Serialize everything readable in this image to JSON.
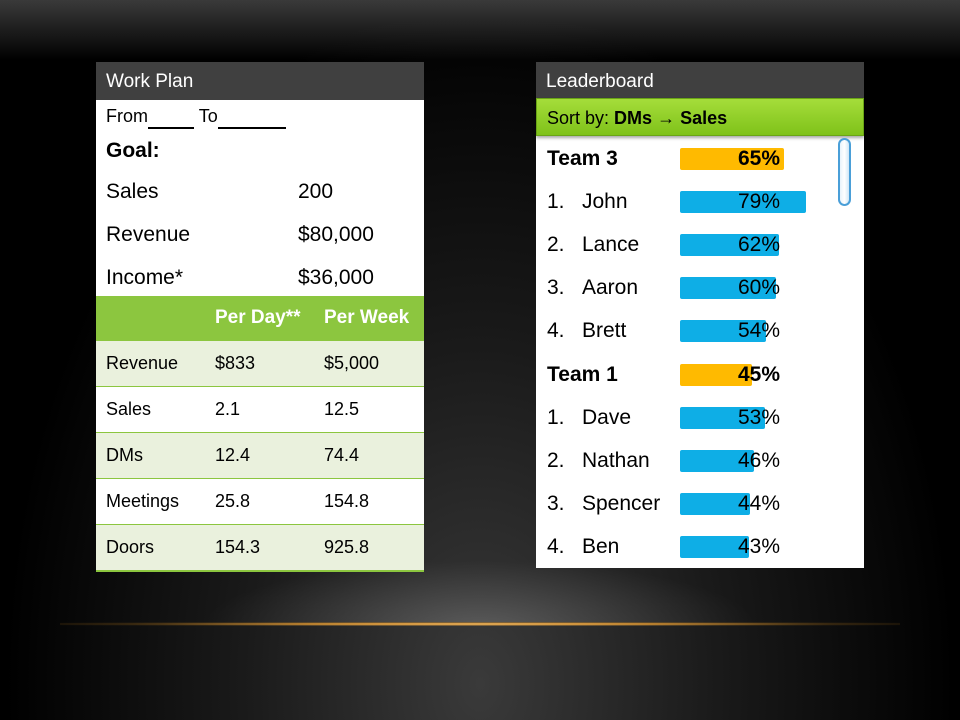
{
  "work_plan": {
    "title": "Work Plan",
    "from_label": "From",
    "to_label": "To",
    "goal_label": "Goal:",
    "goals": [
      {
        "label": "Sales",
        "value": "200"
      },
      {
        "label": "Revenue",
        "value": "$80,000"
      },
      {
        "label": "Income*",
        "value": "$36,000"
      }
    ],
    "table": {
      "headers": [
        "",
        "Per Day**",
        "Per Week"
      ],
      "rows": [
        [
          "Revenue",
          "$833",
          "$5,000"
        ],
        [
          "Sales",
          "2.1",
          "12.5"
        ],
        [
          "DMs",
          "12.4",
          "74.4"
        ],
        [
          "Meetings",
          "25.8",
          "154.8"
        ],
        [
          "Doors",
          "154.3",
          "925.8"
        ]
      ]
    }
  },
  "leaderboard": {
    "title": "Leaderboard",
    "sort_label": "Sort by:",
    "sort_from": "DMs",
    "sort_arrow": "→",
    "sort_to": "Sales",
    "rows": [
      {
        "type": "team",
        "name": "Team 3",
        "percent_text": "65%",
        "percent": 65,
        "color": "#ffba00"
      },
      {
        "type": "member",
        "rank": "1.",
        "name": "John",
        "percent_text": "79%",
        "percent": 79,
        "color": "#0eaee6"
      },
      {
        "type": "member",
        "rank": "2.",
        "name": "Lance",
        "percent_text": "62%",
        "percent": 62,
        "color": "#0eaee6"
      },
      {
        "type": "member",
        "rank": "3.",
        "name": "Aaron",
        "percent_text": "60%",
        "percent": 60,
        "color": "#0eaee6"
      },
      {
        "type": "member",
        "rank": "4.",
        "name": "Brett",
        "percent_text": "54%",
        "percent": 54,
        "color": "#0eaee6"
      },
      {
        "type": "team",
        "name": "Team 1",
        "percent_text": "45%",
        "percent": 45,
        "color": "#ffba00"
      },
      {
        "type": "member",
        "rank": "1.",
        "name": "Dave",
        "percent_text": "53%",
        "percent": 53,
        "color": "#0eaee6"
      },
      {
        "type": "member",
        "rank": "2.",
        "name": "Nathan",
        "percent_text": "46%",
        "percent": 46,
        "color": "#0eaee6"
      },
      {
        "type": "member",
        "rank": "3.",
        "name": "Spencer",
        "percent_text": "44%",
        "percent": 44,
        "color": "#0eaee6"
      },
      {
        "type": "member",
        "rank": "4.",
        "name": "Ben",
        "percent_text": "43%",
        "percent": 43,
        "color": "#0eaee6"
      }
    ]
  },
  "colors": {
    "header_bg": "#404040",
    "accent_green": "#8cc63f",
    "table_shade": "#eaf1dd",
    "bar_blue": "#0eaee6",
    "bar_gold": "#ffba00"
  }
}
